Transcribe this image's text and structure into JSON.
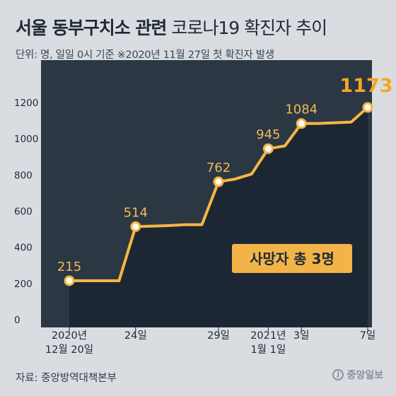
{
  "title": {
    "bold": "서울 동부구치소 관련",
    "regular": "코로나19 확진자 추이"
  },
  "subtitle": "단위: 명, 일일 0시 기준   ※2020년 11월 27일 첫 확진자 발생",
  "source": "자료: 중앙방역대책본부",
  "logo": {
    "mark": "J",
    "text": "중앙일보"
  },
  "colors": {
    "background": "#d9dde2",
    "plot_background": "#2b3743",
    "line": "#f5b642",
    "label": "#f0b95a",
    "tick_text": "#1f2a36"
  },
  "chart_data": {
    "type": "area",
    "title": "서울 동부구치소 관련 코로나19 확진자 추이",
    "ylabel": "",
    "xlabel": "",
    "ylim": [
      0,
      1200
    ],
    "yticks": [
      0,
      200,
      400,
      600,
      800,
      1000,
      1200
    ],
    "grid": false,
    "x": [
      "2020-12-20",
      "2020-12-21",
      "2020-12-22",
      "2020-12-23",
      "2020-12-24",
      "2020-12-25",
      "2020-12-26",
      "2020-12-27",
      "2020-12-28",
      "2020-12-29",
      "2020-12-30",
      "2020-12-31",
      "2021-01-01",
      "2021-01-02",
      "2021-01-03",
      "2021-01-04",
      "2021-01-05",
      "2021-01-06",
      "2021-01-07"
    ],
    "values": [
      215,
      215,
      215,
      215,
      514,
      517,
      520,
      525,
      525,
      762,
      777,
      805,
      945,
      960,
      1084,
      1084,
      1088,
      1092,
      1173
    ],
    "x_tick_labels": [
      {
        "x": "2020-12-20",
        "label": "2020년\n12월 20일"
      },
      {
        "x": "2020-12-24",
        "label": "24일"
      },
      {
        "x": "2020-12-29",
        "label": "29일"
      },
      {
        "x": "2021-01-01",
        "label": "2021년\n1월 1일"
      },
      {
        "x": "2021-01-03",
        "label": "3일"
      },
      {
        "x": "2021-01-07",
        "label": "7일"
      }
    ],
    "data_labels": [
      {
        "x": "2020-12-20",
        "value": 215
      },
      {
        "x": "2020-12-24",
        "value": 514
      },
      {
        "x": "2020-12-29",
        "value": 762
      },
      {
        "x": "2021-01-01",
        "value": 945
      },
      {
        "x": "2021-01-03",
        "value": 1084
      },
      {
        "x": "2021-01-07",
        "value": 1173
      }
    ],
    "annotation": "사망자 총 3명"
  }
}
